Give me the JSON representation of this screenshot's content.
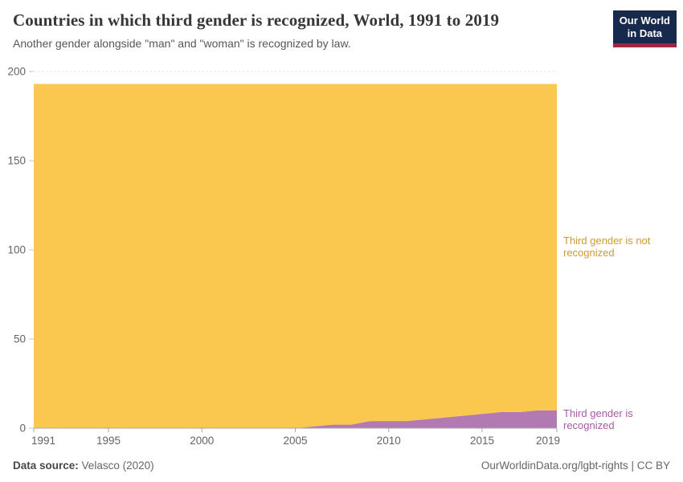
{
  "header": {
    "title": "Countries in which third gender is recognized, World, 1991 to 2019",
    "subtitle": "Another gender alongside \"man\" and \"woman\" is recognized by law.",
    "logo_line1": "Our World",
    "logo_line2": "in Data",
    "logo_bg_color": "#18294E",
    "logo_accent_color": "#9D2643"
  },
  "footer": {
    "datasource_label": "Data source:",
    "datasource_value": "Velasco (2020)",
    "credit": "OurWorldinData.org/lgbt-rights | CC BY"
  },
  "chart_data": {
    "type": "area",
    "stacked": true,
    "title": "Countries in which third gender is recognized, World, 1991 to 2019",
    "xlabel": "",
    "ylabel": "",
    "ylim": [
      0,
      200
    ],
    "y_ticks": [
      0,
      50,
      100,
      150,
      200
    ],
    "x_ticks": [
      1991,
      1995,
      2000,
      2005,
      2010,
      2015,
      2019
    ],
    "grid": "dashed horizontal gridlines, top (200) visible above areas",
    "legend_position": "entity labels at right edge of plot",
    "x": [
      1991,
      1992,
      1993,
      1994,
      1995,
      1996,
      1997,
      1998,
      1999,
      2000,
      2001,
      2002,
      2003,
      2004,
      2005,
      2006,
      2007,
      2008,
      2009,
      2010,
      2011,
      2012,
      2013,
      2014,
      2015,
      2016,
      2017,
      2018,
      2019
    ],
    "series": [
      {
        "name": "Third gender is recognized",
        "color": "#B279B2",
        "label_color": "#A95AA5",
        "values": [
          0,
          0,
          0,
          0,
          0,
          0,
          0,
          0,
          0,
          0,
          0,
          0,
          0,
          0,
          0,
          1,
          2,
          2,
          4,
          4,
          4,
          5,
          6,
          7,
          8,
          9,
          9,
          10,
          10
        ]
      },
      {
        "name": "Third gender is not recognized",
        "color": "#FAC84E",
        "label_color": "#CE9A35",
        "values": [
          193,
          193,
          193,
          193,
          193,
          193,
          193,
          193,
          193,
          193,
          193,
          193,
          193,
          193,
          193,
          192,
          191,
          191,
          189,
          189,
          189,
          188,
          187,
          186,
          185,
          184,
          184,
          183,
          183
        ]
      }
    ]
  }
}
